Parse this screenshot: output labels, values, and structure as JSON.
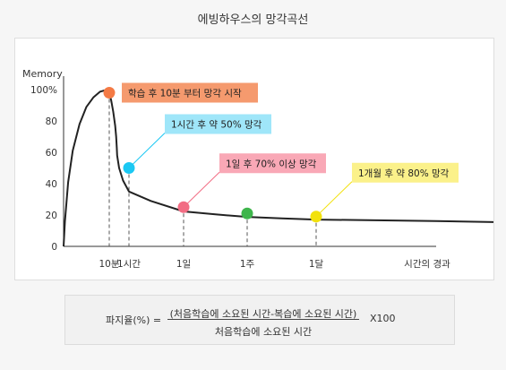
{
  "page_title": "에빙하우스의 망각곡선",
  "chart_data": {
    "type": "line",
    "title": "",
    "ylabel": "Memory",
    "xlabel": "시간의 경과",
    "ylim": [
      0,
      100
    ],
    "y_ticks": [
      "100%",
      "80",
      "60",
      "40",
      "20",
      "0"
    ],
    "y_tick_values": [
      100,
      80,
      60,
      40,
      20,
      0
    ],
    "x_categories": [
      "10분",
      "1시간",
      "1일",
      "1주",
      "1달"
    ],
    "x_end_label": "시간의 경과",
    "curve_color": "#222222",
    "curve": {
      "x": [
        0,
        0.03,
        0.1,
        0.2,
        0.35,
        0.5,
        0.65,
        0.8,
        0.9,
        1.0,
        1.1,
        1.2,
        1.3,
        1.35,
        1.38,
        1.4,
        1.5,
        1.7,
        2.0,
        2.4,
        3.0,
        3.5,
        4.0,
        4.5,
        5.0,
        5.5,
        6.0,
        6.5
      ],
      "y": [
        0,
        16,
        41,
        61,
        78,
        89,
        95,
        98.7,
        99.5,
        98,
        93,
        86,
        77,
        70,
        63,
        58,
        50,
        42,
        35,
        29,
        22.3,
        20.4,
        18.8,
        17.9,
        17.1,
        16.6,
        16.1,
        15.5
      ]
    },
    "points": [
      {
        "x": 1,
        "y": 98,
        "color": "#f47a45",
        "label": "학습 후 10분 부터 망각 시작",
        "label_bg": "#f59a6e",
        "label_side": "right"
      },
      {
        "x": 2,
        "y": 50,
        "color": "#1bc8f3",
        "label": "1시간 후 약 50% 망각",
        "label_bg": "#9fe6f9",
        "label_side": "up"
      },
      {
        "x": 3,
        "y": 25,
        "color": "#f26d84",
        "label": "1일 후 70% 이상 망각",
        "label_bg": "#f9a8b6",
        "label_side": "up"
      },
      {
        "x": 4,
        "y": 21,
        "color": "#3eb54b",
        "label": "",
        "label_bg": "",
        "label_side": "none"
      },
      {
        "x": 5,
        "y": 19,
        "color": "#f2e10c",
        "label": "1개월 후 약 80% 망각",
        "label_bg": "#fbf18a",
        "label_side": "up"
      }
    ]
  },
  "formula": {
    "lhs": "파지율(%) =",
    "numerator": "(처음학습에 소요된 시간-복습에 소요된 시간)",
    "denominator": "처음학습에 소요된 시간",
    "multiplier": "X100"
  }
}
